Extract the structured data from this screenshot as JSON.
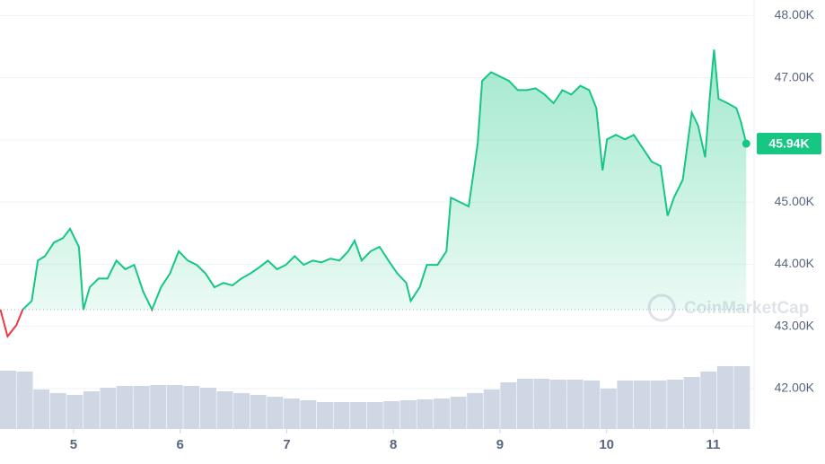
{
  "chart_data": {
    "type": "line",
    "watermark": "CoinMarketCap",
    "x": [
      4.314,
      4.381,
      4.464,
      4.523,
      4.607,
      4.665,
      4.732,
      4.816,
      4.9,
      4.967,
      5.05,
      5.092,
      5.151,
      5.234,
      5.318,
      5.402,
      5.485,
      5.569,
      5.653,
      5.736,
      5.82,
      5.904,
      5.987,
      6.071,
      6.155,
      6.238,
      6.322,
      6.406,
      6.49,
      6.573,
      6.657,
      6.741,
      6.824,
      6.908,
      6.992,
      7.075,
      7.159,
      7.243,
      7.326,
      7.41,
      7.494,
      7.577,
      7.636,
      7.703,
      7.787,
      7.87,
      7.954,
      8.038,
      8.121,
      8.163,
      8.247,
      8.314,
      8.414,
      8.498,
      8.54,
      8.623,
      8.707,
      8.791,
      8.833,
      8.916,
      9.0,
      9.084,
      9.167,
      9.251,
      9.335,
      9.418,
      9.502,
      9.586,
      9.669,
      9.753,
      9.837,
      9.904,
      9.962,
      10.004,
      10.088,
      10.172,
      10.255,
      10.339,
      10.423,
      10.506,
      10.573,
      10.632,
      10.715,
      10.799,
      10.858,
      10.925,
      10.967,
      11.008,
      11.05,
      11.134,
      11.218,
      11.259,
      11.31
    ],
    "series": [
      {
        "color": "#16c784",
        "below_color": "#ea3943",
        "values": [
          43270,
          42840,
          43020,
          43270,
          43410,
          44060,
          44130,
          44350,
          44420,
          44570,
          44280,
          43270,
          43630,
          43770,
          43770,
          44060,
          43920,
          43990,
          43560,
          43270,
          43630,
          43850,
          44210,
          44060,
          43990,
          43850,
          43630,
          43700,
          43660,
          43770,
          43850,
          43950,
          44060,
          43920,
          43990,
          44130,
          43990,
          44060,
          44030,
          44090,
          44060,
          44210,
          44380,
          44060,
          44210,
          44280,
          44060,
          43850,
          43700,
          43410,
          43630,
          43990,
          43990,
          44210,
          45070,
          45000,
          44930,
          45940,
          46950,
          47090,
          47020,
          46950,
          46800,
          46800,
          46830,
          46730,
          46590,
          46800,
          46730,
          46870,
          46800,
          46510,
          45510,
          46010,
          46080,
          46010,
          46080,
          45870,
          45650,
          45580,
          44780,
          45070,
          45360,
          46440,
          46230,
          45720,
          46660,
          47450,
          46660,
          46590,
          46510,
          46300,
          45940
        ]
      }
    ],
    "baseline": 43270,
    "current": {
      "value": 45940,
      "label": "45.94K"
    },
    "volume": {
      "color": "#cfd6e4",
      "values": [
        65,
        64,
        44,
        40,
        38,
        42,
        46,
        48,
        48,
        49,
        49,
        48,
        46,
        42,
        40,
        38,
        36,
        34,
        32,
        30,
        30,
        30,
        30,
        31,
        32,
        33,
        34,
        36,
        40,
        44,
        52,
        56,
        56,
        55,
        55,
        54,
        45,
        54,
        54,
        54,
        55,
        58,
        64,
        70,
        70
      ]
    },
    "xlim": [
      4.31,
      11.35
    ],
    "ylim": [
      41350,
      48250
    ],
    "xticks": [
      5,
      6,
      7,
      8,
      9,
      10,
      11
    ],
    "yticks": [
      {
        "value": 42000,
        "label": "42.00K"
      },
      {
        "value": 43000,
        "label": "43.00K"
      },
      {
        "value": 44000,
        "label": "44.00K"
      },
      {
        "value": 45000,
        "label": "45.00K"
      },
      {
        "value": 46000,
        "label": "46.00K"
      },
      {
        "value": 47000,
        "label": "47.00K"
      },
      {
        "value": 48000,
        "label": "48.00K"
      }
    ],
    "grid": true
  }
}
